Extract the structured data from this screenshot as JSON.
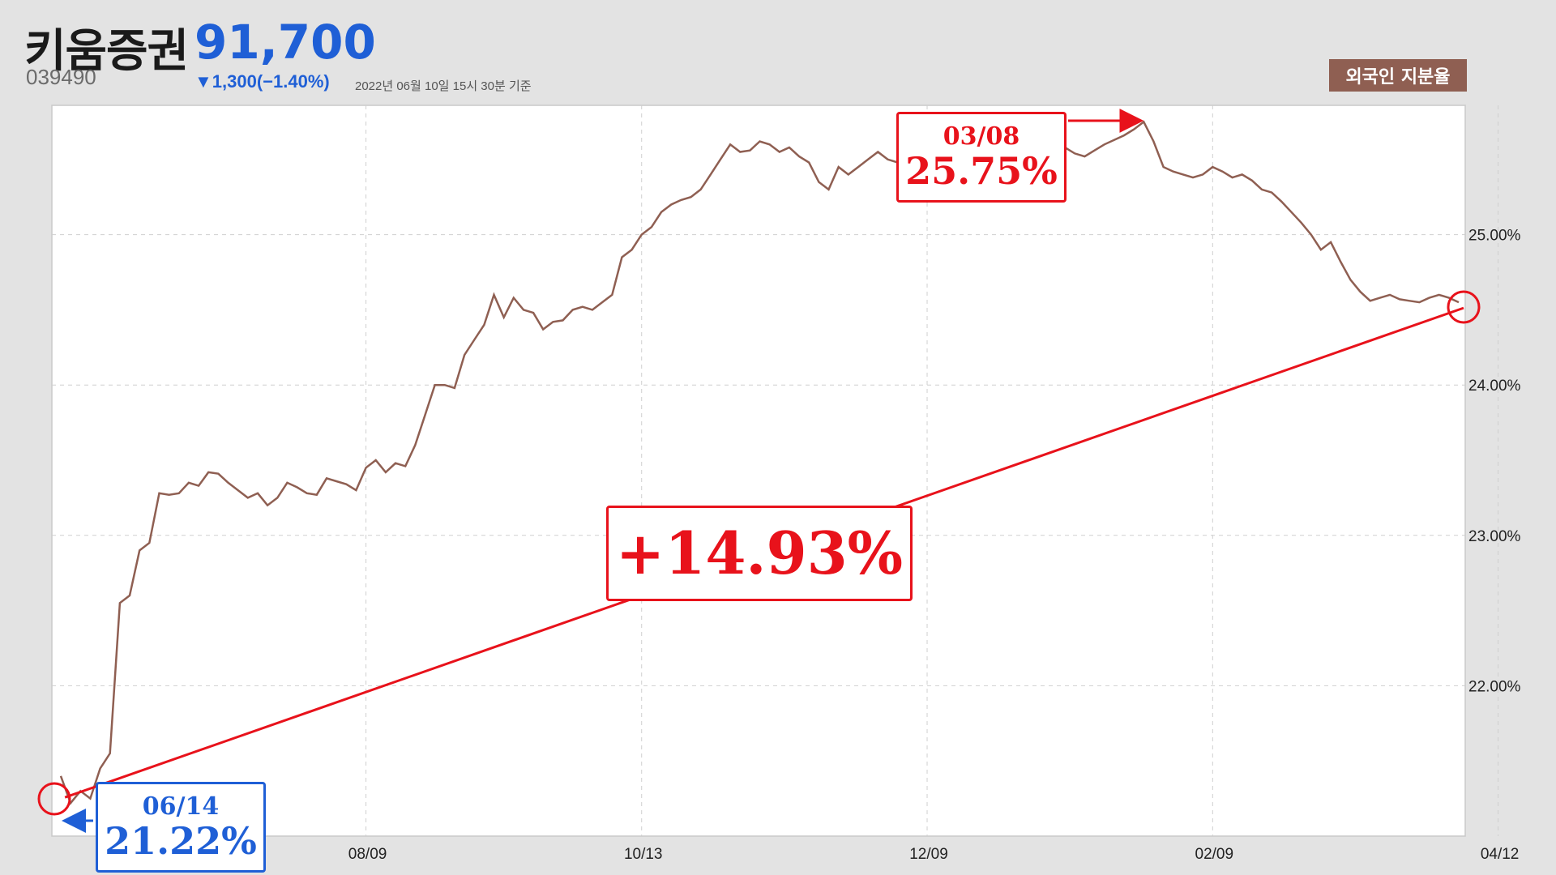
{
  "header": {
    "stock_name": "키움증권",
    "price": "91,700",
    "code": "039490",
    "change": "▼1,300(−1.40%)",
    "date_basis": "2022년 06월 10일 15시 30분 기준",
    "metric_badge": "외국인 지분율"
  },
  "annotations": {
    "start": {
      "date": "06/14",
      "value": "21.22%"
    },
    "peak": {
      "date": "03/08",
      "value": "25.75%"
    },
    "change": "+14.93%"
  },
  "colors": {
    "line": "#8f5f52",
    "highlight": "#e8121b",
    "start": "#1f5fd6",
    "grid": "#cfcfcf",
    "background": "#e3e3e3"
  },
  "chart_data": {
    "type": "line",
    "title": "",
    "xlabel": "",
    "ylabel": "",
    "x_ticks": [
      "08/09",
      "10/13",
      "12/09",
      "02/09",
      "04/12"
    ],
    "y_ticks": [
      "22.00%",
      "23.00%",
      "24.00%",
      "25.00%"
    ],
    "ylim": [
      21.0,
      25.86
    ],
    "grid": true,
    "series": [
      {
        "values": [
          21.4,
          21.22,
          21.3,
          21.25,
          21.45,
          21.55,
          22.55,
          22.6,
          22.9,
          22.95,
          23.28,
          23.27,
          23.28,
          23.35,
          23.33,
          23.42,
          23.41,
          23.35,
          23.3,
          23.25,
          23.28,
          23.2,
          23.25,
          23.35,
          23.32,
          23.28,
          23.27,
          23.38,
          23.36,
          23.34,
          23.3,
          23.45,
          23.5,
          23.42,
          23.48,
          23.46,
          23.6,
          23.8,
          24.0,
          24.0,
          23.98,
          24.2,
          24.3,
          24.4,
          24.6,
          24.45,
          24.58,
          24.5,
          24.48,
          24.37,
          24.42,
          24.43,
          24.5,
          24.52,
          24.5,
          24.55,
          24.6,
          24.85,
          24.9,
          25.0,
          25.05,
          25.15,
          25.2,
          25.23,
          25.25,
          25.3,
          25.4,
          25.5,
          25.6,
          25.55,
          25.56,
          25.62,
          25.6,
          25.55,
          25.58,
          25.52,
          25.48,
          25.35,
          25.3,
          25.45,
          25.4,
          25.45,
          25.5,
          25.55,
          25.5,
          25.48,
          25.58,
          25.62,
          25.65,
          25.6,
          25.52,
          25.5,
          25.53,
          25.55,
          25.52,
          25.58,
          25.62,
          25.64,
          25.66,
          25.62,
          25.6,
          25.6,
          25.58,
          25.54,
          25.52,
          25.56,
          25.6,
          25.63,
          25.66,
          25.7,
          25.75,
          25.62,
          25.45,
          25.42,
          25.4,
          25.38,
          25.4,
          25.45,
          25.42,
          25.38,
          25.4,
          25.36,
          25.3,
          25.28,
          25.22,
          25.15,
          25.08,
          25.0,
          24.9,
          24.95,
          24.82,
          24.7,
          24.62,
          24.56,
          24.58,
          24.6,
          24.57,
          24.56,
          24.55,
          24.58,
          24.6,
          24.58,
          24.55
        ]
      }
    ]
  }
}
